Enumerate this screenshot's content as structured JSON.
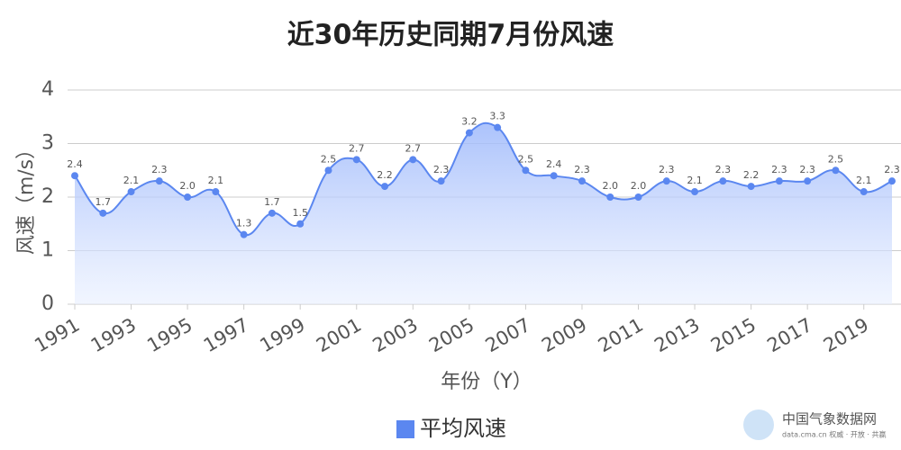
{
  "chart_data": {
    "type": "area",
    "title": "近30年历史同期7月份风速",
    "x_label": "年份（Y）",
    "y_label": "风速（m/s）",
    "x": [
      1991,
      1992,
      1993,
      1994,
      1995,
      1996,
      1997,
      1998,
      1999,
      2000,
      2001,
      2002,
      2003,
      2004,
      2005,
      2006,
      2007,
      2008,
      2009,
      2010,
      2011,
      2012,
      2013,
      2014,
      2015,
      2016,
      2017,
      2018,
      2019,
      2020
    ],
    "series": [
      {
        "name": "平均风速",
        "color": "#5b87f0",
        "values": [
          2.4,
          1.7,
          2.1,
          2.3,
          2.0,
          2.1,
          1.3,
          1.7,
          1.5,
          2.5,
          2.7,
          2.2,
          2.7,
          2.3,
          3.2,
          3.3,
          2.5,
          2.4,
          2.3,
          2.0,
          2.0,
          2.3,
          2.1,
          2.3,
          2.2,
          2.3,
          2.3,
          2.5,
          2.1,
          2.3
        ],
        "value_labels": [
          "2.4",
          "1.7",
          "2.1",
          "2.3",
          "2.0",
          "2.1",
          "1.3",
          "1.7",
          "1.5",
          "2.5",
          "2.7",
          "2.2",
          "2.7",
          "2.3",
          "3.2",
          "3.3",
          "2.5",
          "2.4",
          "2.3",
          "2.0",
          "2.0",
          "2.3",
          "2.1",
          "2.3",
          "2.2",
          "2.3",
          "2.3",
          "2.5",
          "2.1",
          "2.3"
        ]
      }
    ],
    "xlim": [
      1991,
      2020
    ],
    "xticks": [
      1991,
      1993,
      1995,
      1997,
      1999,
      2001,
      2003,
      2005,
      2007,
      2009,
      2011,
      2013,
      2015,
      2017,
      2019
    ],
    "ylim": [
      0,
      4
    ],
    "yticks": [
      0,
      1,
      2,
      3,
      4
    ],
    "grid": true,
    "legend": "bottom",
    "watermark": "中国气象数据网",
    "watermark_sub": "data.cma.cn 权威 · 开放 · 共赢"
  }
}
